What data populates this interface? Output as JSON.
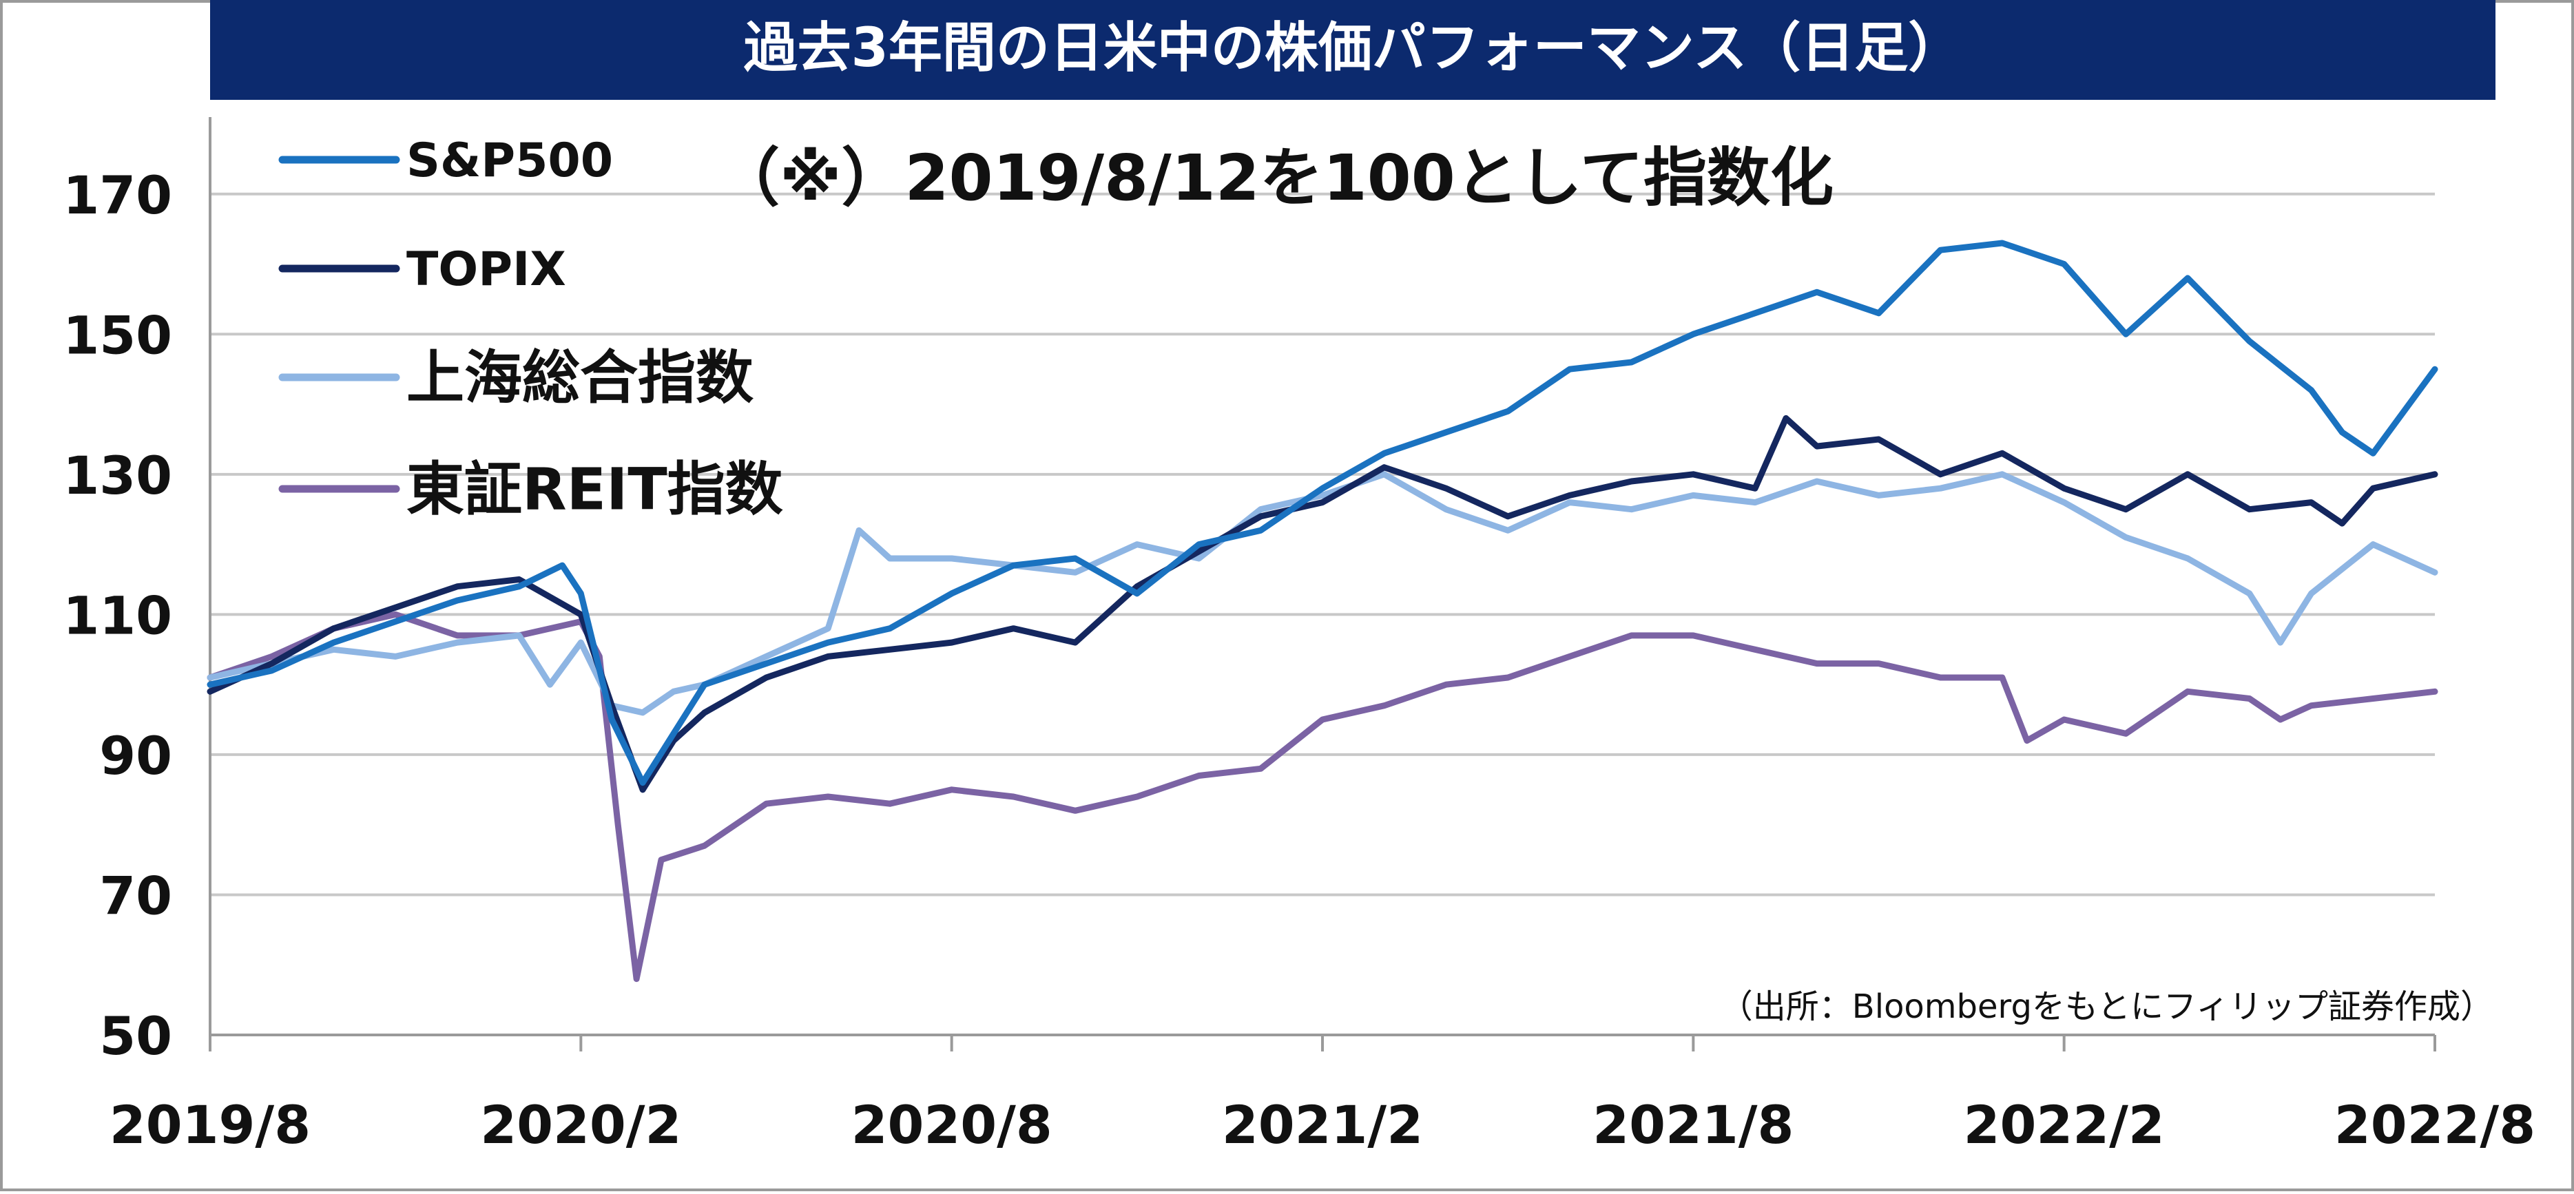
{
  "chart_data": {
    "type": "line",
    "title": "過去3年間の日米中の株価パフォーマンス（日足）",
    "annotation": "（※）2019/8/12を100として指数化",
    "source": "（出所：Bloombergをもとにフィリップ証券作成）",
    "ylim": [
      50,
      180
    ],
    "yticks": [
      50,
      70,
      90,
      110,
      130,
      150,
      170
    ],
    "xlim": [
      0,
      36
    ],
    "xticks": [
      {
        "pos": 0,
        "label": "2019/8"
      },
      {
        "pos": 6,
        "label": "2020/2"
      },
      {
        "pos": 12,
        "label": "2020/8"
      },
      {
        "pos": 18,
        "label": "2021/2"
      },
      {
        "pos": 24,
        "label": "2021/8"
      },
      {
        "pos": 30,
        "label": "2022/2"
      },
      {
        "pos": 36,
        "label": "2022/8"
      }
    ],
    "grid": true,
    "legend_position": "top-left",
    "series": [
      {
        "name": "S&P500",
        "color": "#1a72c0",
        "points": [
          [
            0,
            100
          ],
          [
            1,
            102
          ],
          [
            2,
            106
          ],
          [
            3,
            109
          ],
          [
            4,
            112
          ],
          [
            5,
            114
          ],
          [
            5.7,
            117
          ],
          [
            6,
            113
          ],
          [
            6.5,
            95
          ],
          [
            7,
            86
          ],
          [
            7.5,
            93
          ],
          [
            8,
            100
          ],
          [
            9,
            103
          ],
          [
            10,
            106
          ],
          [
            11,
            108
          ],
          [
            12,
            113
          ],
          [
            13,
            117
          ],
          [
            14,
            118
          ],
          [
            15,
            113
          ],
          [
            16,
            120
          ],
          [
            17,
            122
          ],
          [
            18,
            128
          ],
          [
            19,
            133
          ],
          [
            20,
            136
          ],
          [
            21,
            139
          ],
          [
            22,
            145
          ],
          [
            23,
            146
          ],
          [
            24,
            150
          ],
          [
            25,
            153
          ],
          [
            26,
            156
          ],
          [
            27,
            153
          ],
          [
            28,
            162
          ],
          [
            29,
            163
          ],
          [
            30,
            160
          ],
          [
            30.5,
            155
          ],
          [
            31,
            150
          ],
          [
            32,
            158
          ],
          [
            33,
            149
          ],
          [
            34,
            142
          ],
          [
            34.5,
            136
          ],
          [
            35,
            133
          ],
          [
            36,
            145
          ]
        ]
      },
      {
        "name": "TOPIX",
        "color": "#14275f",
        "points": [
          [
            0,
            99
          ],
          [
            1,
            103
          ],
          [
            2,
            108
          ],
          [
            3,
            111
          ],
          [
            4,
            114
          ],
          [
            5,
            115
          ],
          [
            6,
            110
          ],
          [
            6.5,
            97
          ],
          [
            7,
            85
          ],
          [
            7.5,
            92
          ],
          [
            8,
            96
          ],
          [
            9,
            101
          ],
          [
            10,
            104
          ],
          [
            11,
            105
          ],
          [
            12,
            106
          ],
          [
            13,
            108
          ],
          [
            14,
            106
          ],
          [
            15,
            114
          ],
          [
            16,
            119
          ],
          [
            17,
            124
          ],
          [
            18,
            126
          ],
          [
            19,
            131
          ],
          [
            20,
            128
          ],
          [
            21,
            124
          ],
          [
            22,
            127
          ],
          [
            23,
            129
          ],
          [
            24,
            130
          ],
          [
            25,
            128
          ],
          [
            25.5,
            138
          ],
          [
            26,
            134
          ],
          [
            27,
            135
          ],
          [
            28,
            130
          ],
          [
            29,
            133
          ],
          [
            30,
            128
          ],
          [
            31,
            125
          ],
          [
            32,
            130
          ],
          [
            33,
            125
          ],
          [
            34,
            126
          ],
          [
            34.5,
            123
          ],
          [
            35,
            128
          ],
          [
            36,
            130
          ]
        ]
      },
      {
        "name": "上海総合指数",
        "color": "#8eb5e3",
        "points": [
          [
            0,
            101
          ],
          [
            1,
            103
          ],
          [
            2,
            105
          ],
          [
            3,
            104
          ],
          [
            4,
            106
          ],
          [
            5,
            107
          ],
          [
            5.5,
            100
          ],
          [
            6,
            106
          ],
          [
            6.5,
            97
          ],
          [
            7,
            96
          ],
          [
            7.5,
            99
          ],
          [
            8,
            100
          ],
          [
            9,
            104
          ],
          [
            10,
            108
          ],
          [
            10.5,
            122
          ],
          [
            11,
            118
          ],
          [
            12,
            118
          ],
          [
            13,
            117
          ],
          [
            14,
            116
          ],
          [
            15,
            120
          ],
          [
            16,
            118
          ],
          [
            17,
            125
          ],
          [
            18,
            127
          ],
          [
            19,
            130
          ],
          [
            20,
            125
          ],
          [
            21,
            122
          ],
          [
            22,
            126
          ],
          [
            23,
            125
          ],
          [
            24,
            127
          ],
          [
            25,
            126
          ],
          [
            26,
            129
          ],
          [
            27,
            127
          ],
          [
            28,
            128
          ],
          [
            29,
            130
          ],
          [
            30,
            126
          ],
          [
            31,
            121
          ],
          [
            32,
            118
          ],
          [
            33,
            113
          ],
          [
            33.5,
            106
          ],
          [
            34,
            113
          ],
          [
            35,
            120
          ],
          [
            36,
            116
          ]
        ]
      },
      {
        "name": "東証REIT指数",
        "color": "#7b63a4",
        "points": [
          [
            0,
            101
          ],
          [
            1,
            104
          ],
          [
            2,
            108
          ],
          [
            3,
            110
          ],
          [
            4,
            107
          ],
          [
            5,
            107
          ],
          [
            6,
            109
          ],
          [
            6.3,
            104
          ],
          [
            6.6,
            80
          ],
          [
            6.9,
            58
          ],
          [
            7.3,
            75
          ],
          [
            8,
            77
          ],
          [
            9,
            83
          ],
          [
            10,
            84
          ],
          [
            11,
            83
          ],
          [
            12,
            85
          ],
          [
            13,
            84
          ],
          [
            14,
            82
          ],
          [
            15,
            84
          ],
          [
            16,
            87
          ],
          [
            17,
            88
          ],
          [
            18,
            95
          ],
          [
            19,
            97
          ],
          [
            20,
            100
          ],
          [
            21,
            101
          ],
          [
            22,
            104
          ],
          [
            23,
            107
          ],
          [
            24,
            107
          ],
          [
            25,
            105
          ],
          [
            26,
            103
          ],
          [
            27,
            103
          ],
          [
            28,
            101
          ],
          [
            29,
            101
          ],
          [
            29.4,
            92
          ],
          [
            30,
            95
          ],
          [
            31,
            93
          ],
          [
            32,
            99
          ],
          [
            33,
            98
          ],
          [
            33.5,
            95
          ],
          [
            34,
            97
          ],
          [
            35,
            98
          ],
          [
            36,
            99
          ]
        ]
      }
    ]
  }
}
